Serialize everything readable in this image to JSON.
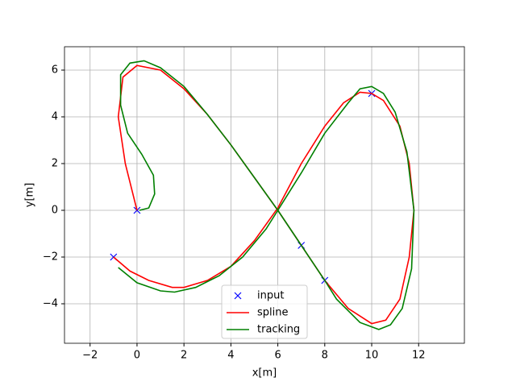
{
  "chart_data": {
    "type": "line",
    "xlabel": "x[m]",
    "ylabel": "y[m]",
    "xlim": [
      -3.09,
      13.95
    ],
    "ylim": [
      -5.69,
      7.0
    ],
    "xticks": [
      {
        "value": -2,
        "label": "−2"
      },
      0,
      2,
      4,
      6,
      8,
      10,
      12
    ],
    "yticks": [
      {
        "value": -4,
        "label": "−4"
      },
      {
        "value": -2,
        "label": "−2"
      },
      0,
      2,
      4,
      6
    ],
    "grid": true,
    "legend": "lower center",
    "series": [
      {
        "name": "input",
        "color": "#0000ff",
        "marker": "x",
        "x": [
          0,
          7,
          8,
          10,
          -1
        ],
        "y": [
          0,
          -1.5,
          -3,
          5,
          -2
        ]
      },
      {
        "name": "spline",
        "color": "#ff0000",
        "x": [
          0,
          -0.5,
          -0.8,
          -0.6,
          0,
          1,
          2,
          3,
          4,
          5,
          6,
          7,
          8,
          9,
          10,
          10.6,
          11.2,
          11.6,
          11.8,
          11.6,
          11.2,
          10.5,
          10,
          9.5,
          8.8,
          8,
          7,
          6,
          5,
          4,
          3,
          2,
          1.5,
          0.5,
          -0.3,
          -1
        ],
        "y": [
          0,
          2,
          4,
          5.7,
          6.2,
          6,
          5.2,
          4.1,
          2.8,
          1.4,
          0,
          -1.5,
          -3,
          -4.2,
          -4.85,
          -4.7,
          -3.8,
          -2,
          0,
          2,
          3.6,
          4.7,
          5,
          5.05,
          4.6,
          3.6,
          2,
          0.1,
          -1.3,
          -2.4,
          -3,
          -3.3,
          -3.3,
          -3,
          -2.6,
          -2
        ]
      },
      {
        "name": "tracking",
        "color": "#008000",
        "x": [
          0.1,
          0.5,
          0.75,
          0.7,
          0.2,
          -0.4,
          -0.7,
          -0.7,
          -0.3,
          0.3,
          1,
          2,
          3,
          4,
          5,
          6,
          7,
          8,
          8.5,
          9.5,
          10.3,
          10.8,
          11.3,
          11.7,
          11.8,
          11.5,
          11,
          10.5,
          10,
          9.5,
          9,
          8,
          7,
          6,
          5.5,
          4.5,
          3.5,
          2.5,
          1.6,
          1,
          0,
          -0.8
        ],
        "y": [
          0,
          0.1,
          0.7,
          1.5,
          2.4,
          3.3,
          4.5,
          5.8,
          6.3,
          6.4,
          6.1,
          5.3,
          4.1,
          2.8,
          1.4,
          0,
          -1.5,
          -3,
          -3.8,
          -4.8,
          -5.1,
          -4.9,
          -4.2,
          -2.5,
          0,
          2.5,
          4.2,
          5,
          5.3,
          5.2,
          4.6,
          3.3,
          1.6,
          0,
          -0.8,
          -2,
          -2.8,
          -3.3,
          -3.5,
          -3.45,
          -3.1,
          -2.45
        ]
      }
    ]
  }
}
